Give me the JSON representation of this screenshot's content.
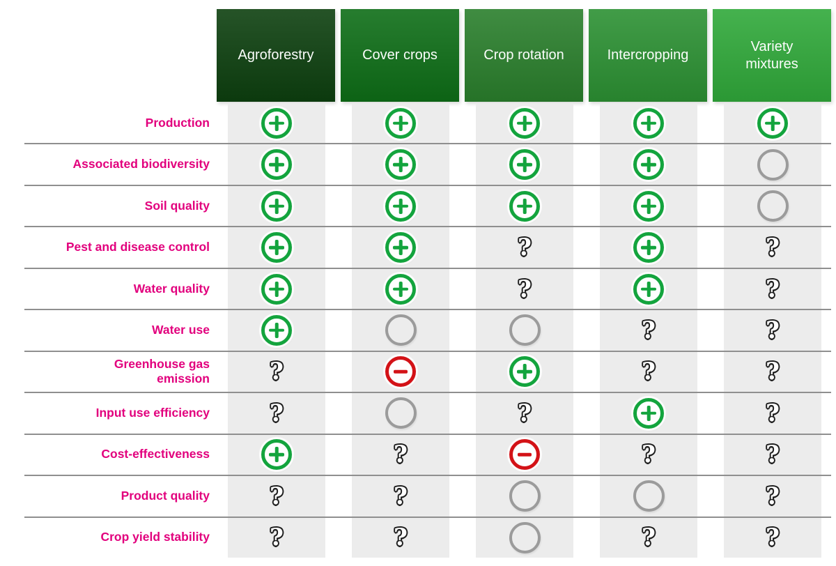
{
  "chart_data": {
    "type": "table",
    "title": "",
    "columns": [
      "Agroforestry",
      "Cover crops",
      "Crop rotation",
      "Intercropping",
      "Variety mixtures"
    ],
    "rows": [
      "Production",
      "Associated biodiversity",
      "Soil quality",
      "Pest and disease control",
      "Water quality",
      "Water use",
      "Greenhouse gas emission",
      "Input use efficiency",
      "Cost-effectiveness",
      "Product quality",
      "Crop yield stability"
    ],
    "cell_legend": {
      "+": "positive effect (green circled plus)",
      "-": "negative effect (red circled minus)",
      "0": "no effect (empty grey circle)",
      "?": "unknown (question mark)"
    },
    "cells": [
      [
        "+",
        "+",
        "+",
        "+",
        "+"
      ],
      [
        "+",
        "+",
        "+",
        "+",
        "0"
      ],
      [
        "+",
        "+",
        "+",
        "+",
        "0"
      ],
      [
        "+",
        "+",
        "?",
        "+",
        "?"
      ],
      [
        "+",
        "+",
        "?",
        "+",
        "?"
      ],
      [
        "+",
        "0",
        "0",
        "?",
        "?"
      ],
      [
        "?",
        "-",
        "+",
        "?",
        "?"
      ],
      [
        "?",
        "0",
        "?",
        "+",
        "?"
      ],
      [
        "+",
        "?",
        "-",
        "?",
        "?"
      ],
      [
        "?",
        "?",
        "0",
        "0",
        "?"
      ],
      [
        "?",
        "?",
        "0",
        "?",
        "?"
      ]
    ],
    "layout_hints": {
      "header_position": "top",
      "row_labels_position": "left",
      "grid": "horizontal lines between rows, grey column bands"
    }
  },
  "figure": {
    "column_display": [
      "Agroforestry",
      "Cover crops",
      "Crop rotation",
      "Intercropping",
      "Variety\nmixtures"
    ],
    "column_colors": [
      "#0d400f",
      "#0e6e17",
      "#2a7f2c",
      "#2c9133",
      "#30a93a"
    ],
    "row_display": [
      "Production",
      "Associated biodiversity",
      "Soil quality",
      "Pest and disease control",
      "Water quality",
      "Water use",
      "Greenhouse gas\nemission",
      "Input use efficiency",
      "Cost-effectiveness",
      "Product quality",
      "Crop yield stability"
    ],
    "colors": {
      "row_label": "#e2007d",
      "band": "#ececec",
      "divider_line": "#8f8f8f",
      "plus_symbol": "#13a43d",
      "minus_symbol": "#d31217",
      "neutral_symbol": "#9b9b9b",
      "question_outline": "#1f1f1f",
      "header_text": "#fbfdfb",
      "background": "#ffffff"
    }
  }
}
